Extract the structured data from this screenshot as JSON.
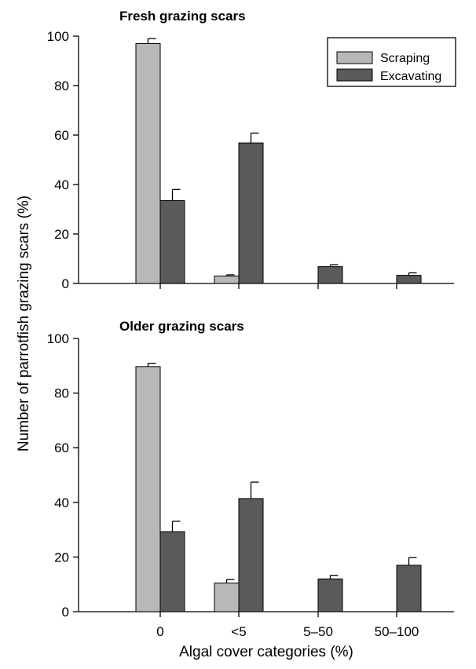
{
  "figure": {
    "ylabel": "Number of parrotfish grazing scars (%)",
    "xlabel": "Algal cover categories (%)"
  },
  "colors": {
    "scraping": "#b8b8b8",
    "excavating": "#5a5a5a",
    "outline": "#000000"
  },
  "chart_data": [
    {
      "type": "bar",
      "title": "Fresh grazing scars",
      "categories": [
        "0",
        "<5",
        "5–50",
        "50–100"
      ],
      "series": [
        {
          "name": "Scraping",
          "values": [
            97,
            3,
            0,
            0
          ],
          "errors": [
            2,
            0.5,
            0,
            0
          ]
        },
        {
          "name": "Excavating",
          "values": [
            33.5,
            56.8,
            6.8,
            3.3
          ],
          "errors": [
            4.5,
            4.0,
            0.8,
            1.0
          ]
        }
      ],
      "ylim": [
        0,
        100
      ],
      "yticks": [
        0,
        20,
        40,
        60,
        80,
        100
      ],
      "legend": {
        "placement": "top-right",
        "entries": [
          "Scraping",
          "Excavating"
        ]
      }
    },
    {
      "type": "bar",
      "title": "Older grazing scars",
      "categories": [
        "0",
        "<5",
        "5–50",
        "50–100"
      ],
      "series": [
        {
          "name": "Scraping",
          "values": [
            89.7,
            10.5,
            0,
            0
          ],
          "errors": [
            1.2,
            1.3,
            0,
            0
          ]
        },
        {
          "name": "Excavating",
          "values": [
            29.3,
            41.4,
            12.0,
            17.0
          ],
          "errors": [
            3.8,
            6.0,
            1.3,
            2.8
          ]
        }
      ],
      "ylim": [
        0,
        100
      ],
      "yticks": [
        0,
        20,
        40,
        60,
        80,
        100
      ]
    }
  ]
}
